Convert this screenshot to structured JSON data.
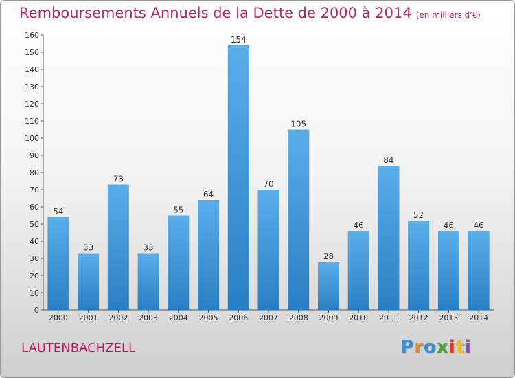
{
  "title": "Remboursements Annuels de la Dette de 2000 à 2014",
  "unit": "(en milliers d'€)",
  "commune": "LAUTENBACHZELL",
  "logo": {
    "letters": [
      "P",
      "r",
      "o",
      "x",
      "i",
      "t",
      "i"
    ],
    "colors": [
      "#3b8fd8",
      "#e8902a",
      "#3b8fd8",
      "#4aa43a",
      "#e03a2a",
      "#f0c020",
      "#8a4fb8"
    ]
  },
  "colors": {
    "title": "#b5266e",
    "bar_top": "#5aaeea",
    "bar_bottom": "#2a7fc4",
    "axis": "#555555"
  },
  "chart_data": {
    "type": "bar",
    "categories": [
      "2000",
      "2001",
      "2002",
      "2003",
      "2004",
      "2005",
      "2006",
      "2007",
      "2008",
      "2009",
      "2010",
      "2011",
      "2012",
      "2013",
      "2014"
    ],
    "values": [
      54,
      33,
      73,
      33,
      55,
      64,
      154,
      70,
      105,
      28,
      46,
      84,
      52,
      46,
      46
    ],
    "ylim": [
      0,
      160
    ],
    "yticks": [
      0,
      10,
      20,
      30,
      40,
      50,
      60,
      70,
      80,
      90,
      100,
      110,
      120,
      130,
      140,
      150,
      160
    ],
    "grid": false,
    "xlabel": "",
    "ylabel": ""
  }
}
